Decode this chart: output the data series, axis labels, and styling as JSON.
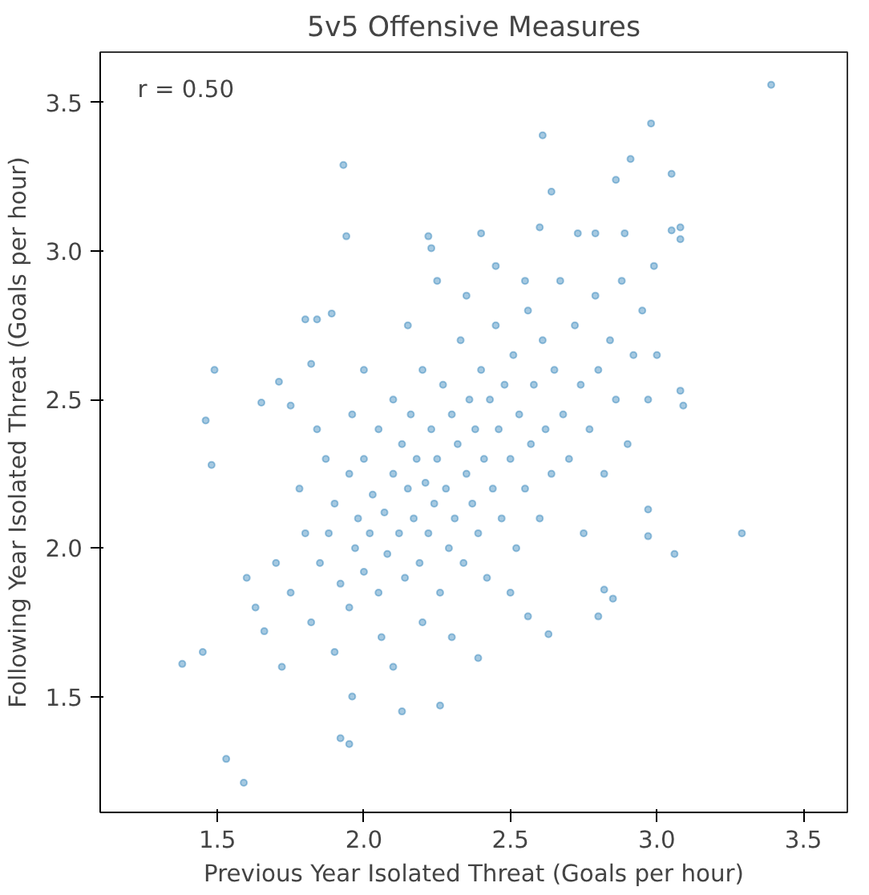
{
  "chart_data": {
    "type": "scatter",
    "title": "5v5 Offensive Measures",
    "xlabel": "Previous Year Isolated Threat (Goals per hour)",
    "ylabel": "Following Year Isolated Threat (Goals per hour)",
    "annotations": [
      "r = 0.50"
    ],
    "xlim": [
      1.1,
      3.65
    ],
    "ylim": [
      1.11,
      3.67
    ],
    "xticks": [
      1.5,
      {
        "value": 2,
        "label": "2.0"
      },
      2.5,
      {
        "value": 3,
        "label": "3.0"
      },
      3.5
    ],
    "yticks": [
      1.5,
      {
        "value": 2,
        "label": "2.0"
      },
      2.5,
      {
        "value": 3,
        "label": "3.0"
      },
      3.5
    ],
    "grid": false,
    "marker": "circle",
    "series": [
      {
        "color": "#1f77b4",
        "x": [
          3.39,
          1.93,
          2.61,
          2.98,
          2.64,
          2.91,
          3.05,
          2.86,
          2.6,
          3.08,
          3.08,
          3.05,
          2.73,
          2.79,
          2.89,
          2.4,
          1.94,
          2.22,
          2.23,
          1.38,
          1.45,
          1.53,
          1.59,
          1.48,
          1.46,
          1.92,
          1.95,
          1.96,
          2.13,
          2.26,
          3.29,
          3.06,
          2.97,
          2.97,
          2.85,
          2.82,
          2.8,
          2.63,
          2.56,
          2.39,
          3.08,
          3.09,
          3.0,
          2.99,
          1.49,
          1.8,
          1.84,
          1.89,
          1.82,
          1.65,
          1.71,
          1.75,
          1.85,
          1.88,
          1.9,
          1.92,
          1.95,
          1.97,
          1.98,
          2.0,
          2.0,
          2.02,
          2.03,
          2.05,
          2.05,
          2.07,
          2.08,
          2.1,
          2.1,
          2.12,
          2.13,
          2.14,
          2.15,
          2.16,
          2.17,
          2.18,
          2.19,
          2.2,
          2.21,
          2.22,
          2.23,
          2.24,
          2.25,
          2.26,
          2.27,
          2.28,
          2.29,
          2.3,
          2.31,
          2.32,
          2.33,
          2.34,
          2.35,
          2.36,
          2.37,
          2.38,
          2.39,
          2.4,
          2.41,
          2.42,
          2.43,
          2.44,
          2.45,
          2.46,
          2.47,
          2.48,
          2.5,
          2.51,
          2.52,
          2.53,
          2.55,
          2.56,
          2.57,
          2.58,
          2.6,
          2.61,
          2.62,
          2.64,
          2.65,
          2.67,
          2.68,
          2.7,
          2.72,
          2.74,
          2.75,
          2.77,
          2.79,
          2.8,
          2.82,
          2.84,
          2.86,
          2.88,
          2.9,
          2.92,
          2.95,
          2.97,
          1.6,
          1.63,
          1.66,
          1.7,
          1.72,
          1.75,
          1.78,
          1.8,
          1.82,
          1.84,
          1.87,
          1.9,
          1.95,
          2.0,
          1.96,
          2.06,
          2.1,
          2.15,
          2.2,
          2.3,
          2.25,
          2.35,
          2.45,
          2.5,
          2.55
        ],
        "values": [
          3.56,
          3.29,
          3.39,
          3.43,
          3.2,
          3.31,
          3.26,
          3.24,
          3.08,
          3.08,
          3.04,
          3.07,
          3.06,
          3.06,
          3.06,
          3.06,
          3.05,
          3.05,
          3.01,
          1.61,
          1.65,
          1.29,
          1.21,
          2.28,
          2.43,
          1.36,
          1.34,
          1.5,
          1.45,
          1.47,
          2.05,
          1.98,
          2.04,
          2.13,
          1.83,
          1.86,
          1.77,
          1.71,
          1.77,
          1.63,
          2.53,
          2.48,
          2.65,
          2.95,
          2.6,
          2.77,
          2.77,
          2.79,
          2.62,
          2.49,
          2.56,
          2.48,
          1.95,
          2.05,
          2.15,
          1.88,
          2.25,
          2.0,
          2.1,
          1.92,
          2.3,
          2.05,
          2.18,
          1.85,
          2.4,
          2.12,
          1.98,
          2.25,
          2.5,
          2.05,
          2.35,
          1.9,
          2.2,
          2.45,
          2.1,
          2.3,
          1.95,
          2.6,
          2.22,
          2.05,
          2.4,
          2.15,
          2.3,
          1.85,
          2.55,
          2.2,
          2.0,
          2.45,
          2.1,
          2.35,
          2.7,
          1.95,
          2.25,
          2.5,
          2.15,
          2.4,
          2.05,
          2.6,
          2.3,
          1.9,
          2.5,
          2.2,
          2.75,
          2.4,
          2.1,
          2.55,
          2.3,
          2.65,
          2.0,
          2.45,
          2.2,
          2.8,
          2.35,
          2.55,
          2.1,
          2.7,
          2.4,
          2.25,
          2.6,
          2.9,
          2.45,
          2.3,
          2.75,
          2.55,
          2.05,
          2.4,
          2.85,
          2.6,
          2.25,
          2.7,
          2.5,
          2.9,
          2.35,
          2.65,
          2.8,
          2.5,
          1.9,
          1.8,
          1.72,
          1.95,
          1.6,
          1.85,
          2.2,
          2.05,
          1.75,
          2.4,
          2.3,
          1.65,
          1.8,
          2.6,
          2.45,
          1.7,
          1.6,
          2.75,
          1.75,
          1.7,
          2.9,
          2.85,
          2.95,
          1.85,
          2.9
        ]
      }
    ]
  }
}
